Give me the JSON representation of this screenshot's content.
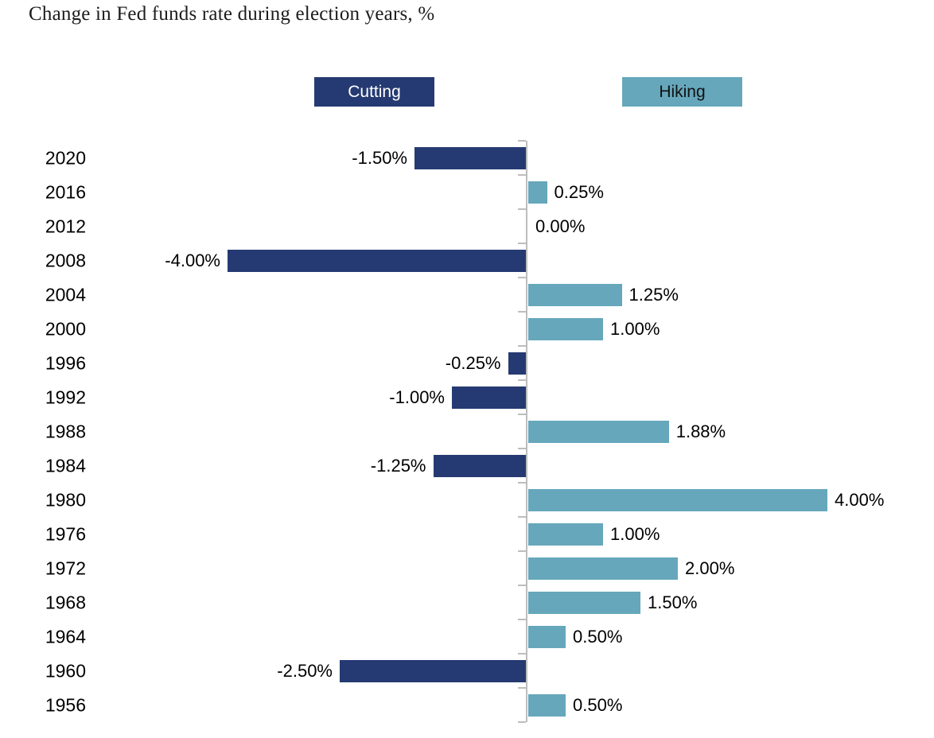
{
  "title": "Change in Fed funds rate during election years, %",
  "legend": {
    "cutting": "Cutting",
    "hiking": "Hiking"
  },
  "colors": {
    "cutting": "#253A72",
    "hiking": "#66A7BC",
    "axis": "#BDBDBD",
    "label_text": "#000000",
    "legend_cutting_text": "#FFFFFF",
    "legend_hiking_text": "#111111"
  },
  "chart_data": {
    "type": "bar",
    "orientation": "horizontal",
    "title": "Change in Fed funds rate during election years, %",
    "categories": [
      "2020",
      "2016",
      "2012",
      "2008",
      "2004",
      "2000",
      "1996",
      "1992",
      "1988",
      "1984",
      "1980",
      "1976",
      "1972",
      "1968",
      "1964",
      "1960",
      "1956"
    ],
    "values": [
      -1.5,
      0.25,
      0.0,
      -4.0,
      1.25,
      1.0,
      -0.25,
      -1.0,
      1.88,
      -1.25,
      4.0,
      1.0,
      2.0,
      1.5,
      0.5,
      -2.5,
      0.5
    ],
    "value_labels": [
      "-1.50%",
      "0.25%",
      "0.00%",
      "-4.00%",
      "1.25%",
      "1.00%",
      "-0.25%",
      "-1.00%",
      "1.88%",
      "-1.25%",
      "4.00%",
      "1.00%",
      "2.00%",
      "1.50%",
      "0.50%",
      "-2.50%",
      "0.50%"
    ],
    "legend_entries": [
      "Cutting",
      "Hiking"
    ],
    "series_rule": "negative values = Cutting (dark navy), positive values = Hiking (steel blue)",
    "xlim": [
      -4.5,
      4.5
    ],
    "grid": false,
    "legend_position": "top",
    "xlabel": "",
    "ylabel": ""
  }
}
